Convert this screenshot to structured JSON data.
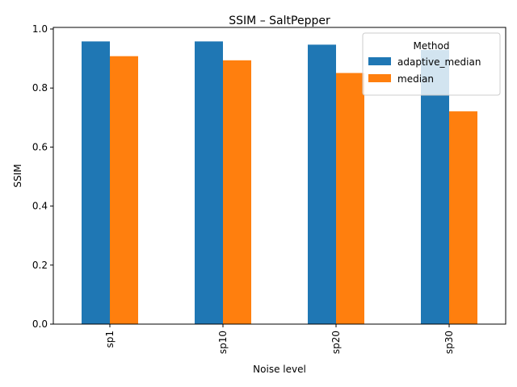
{
  "chart_data": {
    "type": "bar",
    "title": "SSIM – SaltPepper",
    "xlabel": "Noise level",
    "ylabel": "SSIM",
    "categories": [
      "sp1",
      "sp10",
      "sp20",
      "sp30"
    ],
    "series": [
      {
        "name": "adaptive_median",
        "color": "#1f77b4",
        "values": [
          0.958,
          0.958,
          0.947,
          0.929
        ]
      },
      {
        "name": "median",
        "color": "#ff7f0e",
        "values": [
          0.908,
          0.894,
          0.851,
          0.721
        ]
      }
    ],
    "ylim": [
      0,
      1.0
    ],
    "yticks": [
      "0.0",
      "0.2",
      "0.4",
      "0.6",
      "0.8",
      "1.0"
    ],
    "legend": {
      "title": "Method",
      "position": "top-right"
    },
    "grid": false
  }
}
